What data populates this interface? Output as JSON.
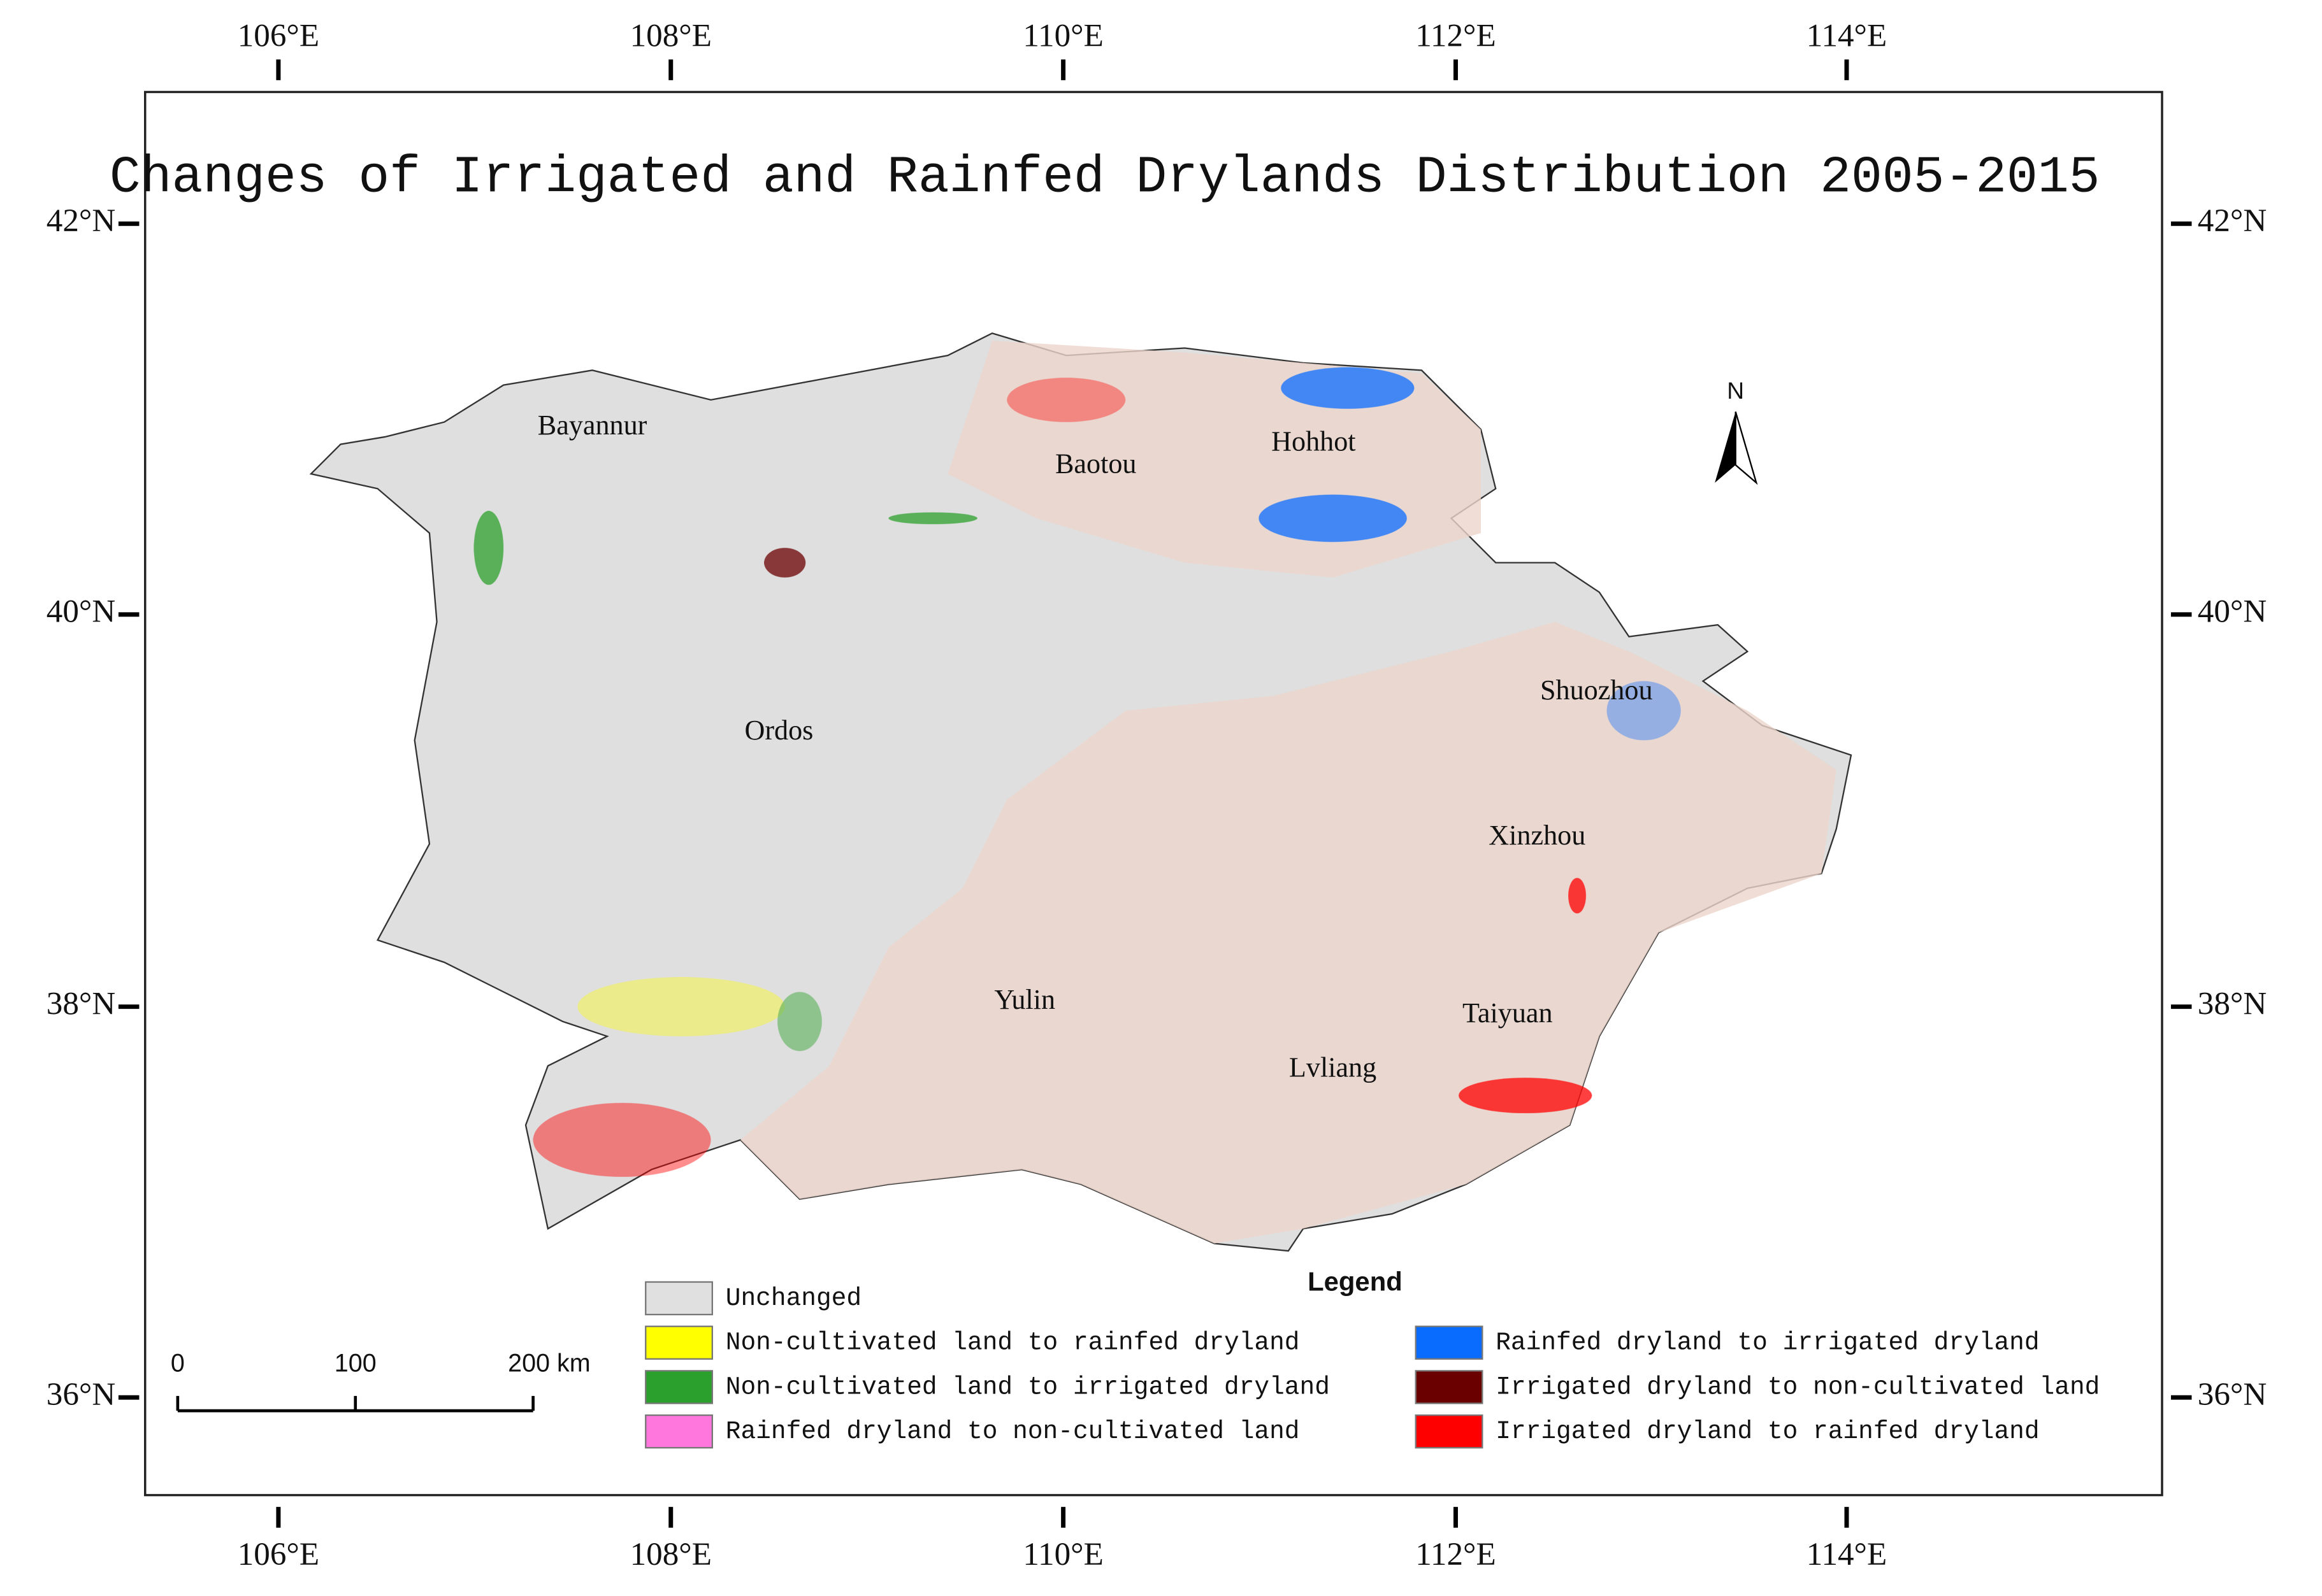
{
  "title": "Changes of Irrigated and Rainfed Drylands Distribution 2005-2015",
  "longitude_labels": [
    "106°E",
    "108°E",
    "110°E",
    "112°E",
    "114°E"
  ],
  "latitude_labels": [
    "42°N",
    "40°N",
    "38°N",
    "36°N"
  ],
  "cities": [
    "Bayannur",
    "Baotou",
    "Hohhot",
    "Ordos",
    "Shuozhou",
    "Xinzhou",
    "Yulin",
    "Taiyuan",
    "Lvliang"
  ],
  "north_label": "N",
  "scale_bar": [
    "0",
    "100",
    "200 km"
  ],
  "legend": {
    "title": "Legend",
    "items": [
      {
        "label": "Unchanged",
        "color": "#e0e0e0"
      },
      {
        "label": "Non-cultivated land to rainfed dryland",
        "color": "#ffff00"
      },
      {
        "label": "Non-cultivated land to irrigated dryland",
        "color": "#2ca02c"
      },
      {
        "label": "Rainfed dryland to non-cultivated land",
        "color": "#ff77dd"
      },
      {
        "label": "Rainfed dryland to irrigated dryland",
        "color": "#0a6cff"
      },
      {
        "label": "Irrigated dryland to non-cultivated land",
        "color": "#6b0000"
      },
      {
        "label": "Irrigated dryland to rainfed dryland",
        "color": "#ff0000"
      }
    ]
  }
}
